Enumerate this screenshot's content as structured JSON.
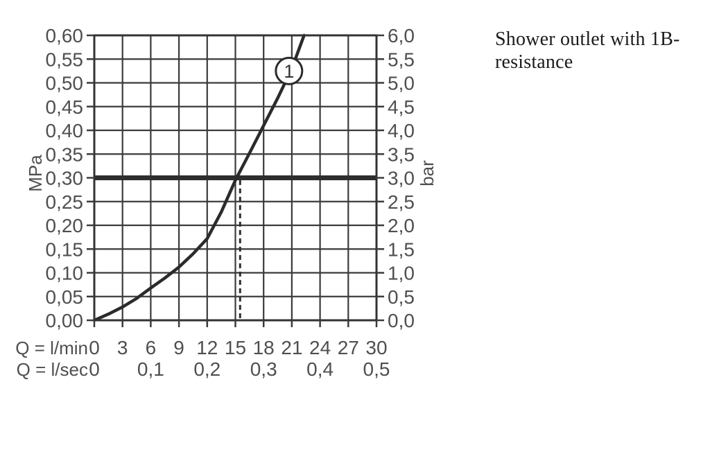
{
  "note": {
    "lines": [
      "Shower outlet with 1B-",
      "resistance"
    ]
  },
  "chart_data": {
    "type": "line",
    "title": "Shower outlet with 1B-resistance",
    "x_axis": {
      "primary_label": "Q = l/min",
      "primary_tick_values": [
        0,
        3,
        6,
        9,
        12,
        15,
        18,
        21,
        24,
        27,
        30
      ],
      "primary_tick_labels": [
        "0",
        "3",
        "6",
        "9",
        "12",
        "15",
        "18",
        "21",
        "24",
        "27",
        "30"
      ],
      "secondary_label": "Q = l/sec",
      "secondary_ticks": [
        {
          "label": "0",
          "lmin": 0
        },
        {
          "label": "0,1",
          "lmin": 6
        },
        {
          "label": "0,2",
          "lmin": 12
        },
        {
          "label": "0,3",
          "lmin": 18
        },
        {
          "label": "0,4",
          "lmin": 24
        },
        {
          "label": "0,5",
          "lmin": 30
        }
      ],
      "range_lmin": [
        0,
        30
      ],
      "gridline_step_lmin": 3
    },
    "y_axis_left": {
      "label": "MPa",
      "tick_labels": [
        "0,00",
        "0,05",
        "0,10",
        "0,15",
        "0,20",
        "0,25",
        "0,30",
        "0,35",
        "0,40",
        "0,45",
        "0,50",
        "0,55",
        "0,60"
      ],
      "tick_values_mpa": [
        0,
        0.05,
        0.1,
        0.15,
        0.2,
        0.25,
        0.3,
        0.35,
        0.4,
        0.45,
        0.5,
        0.55,
        0.6
      ],
      "range_mpa": [
        0,
        0.6
      ]
    },
    "y_axis_right": {
      "label": "bar",
      "tick_labels": [
        "0,0",
        "0,5",
        "1,0",
        "1,5",
        "2,0",
        "2,5",
        "3,0",
        "3,5",
        "4,0",
        "4,5",
        "5,0",
        "5,5",
        "6,0"
      ],
      "tick_values_bar": [
        0,
        0.5,
        1.0,
        1.5,
        2.0,
        2.5,
        3.0,
        3.5,
        4.0,
        4.5,
        5.0,
        5.5,
        6.0
      ],
      "range_bar": [
        0,
        6
      ]
    },
    "series": [
      {
        "name": "1",
        "marker": {
          "label": "1",
          "lmin": 20.7,
          "mpa": 0.525
        },
        "points_lmin_mpa": [
          [
            0,
            0
          ],
          [
            1.5,
            0.013
          ],
          [
            3,
            0.028
          ],
          [
            4.5,
            0.046
          ],
          [
            6,
            0.068
          ],
          [
            7.5,
            0.089
          ],
          [
            9,
            0.112
          ],
          [
            10.5,
            0.14
          ],
          [
            12,
            0.172
          ],
          [
            13.5,
            0.228
          ],
          [
            15,
            0.295
          ],
          [
            16.5,
            0.352
          ],
          [
            18,
            0.41
          ],
          [
            19.5,
            0.468
          ],
          [
            21,
            0.53
          ],
          [
            22.3,
            0.6
          ]
        ]
      }
    ],
    "reference_line": {
      "mpa": 0.3,
      "bar": 3.0
    },
    "dashed_guide": {
      "lmin": 15.5,
      "from_mpa": 0,
      "to_mpa": 0.295
    },
    "grid": true,
    "legend_position": "none"
  },
  "colors": {
    "background": "#ffffff",
    "grid": "#3b3b3b",
    "border": "#333333",
    "tick": "#3b3b3b",
    "axis_labels": "#4f4f4f",
    "curve": "#2b2b2b",
    "reference_line": "#2e2e2e",
    "dashed_guide": "#2e2e2e",
    "marker_fill": "#ffffff",
    "marker_stroke": "#2b2b2b",
    "marker_text": "#333333",
    "note_text": "#1b1b1b"
  }
}
